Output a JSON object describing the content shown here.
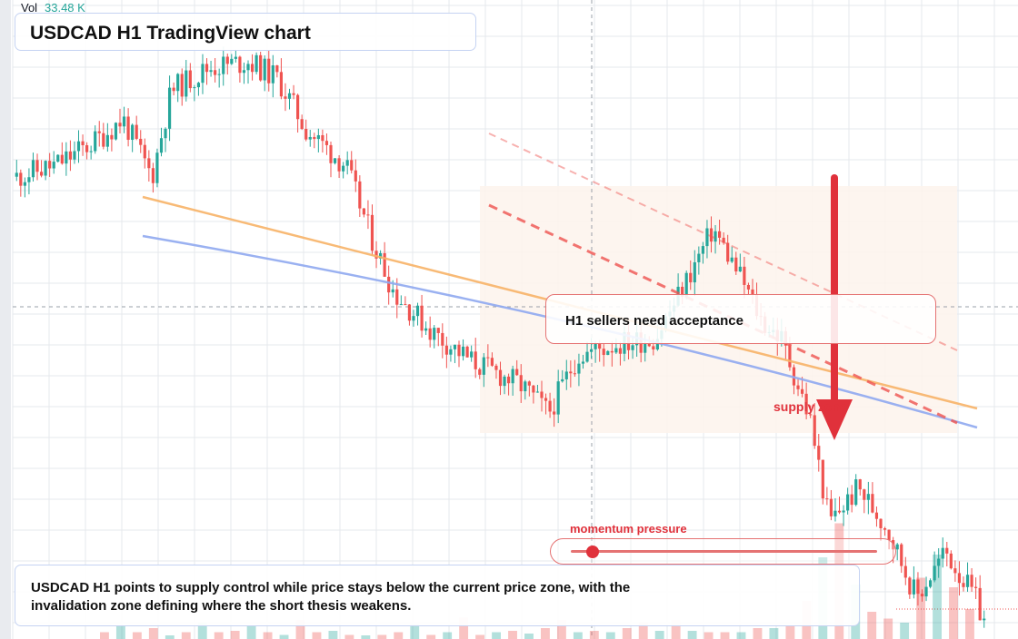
{
  "header": {
    "vol_label": "Vol",
    "vol_value": "33.48 K",
    "title": "USDCAD H1 TradingView chart"
  },
  "annotations": {
    "callout": "H1 sellers need acceptance",
    "supply_zone": "supply zone",
    "momentum_label": "momentum pressure",
    "momentum_level": 0.07,
    "summary": "USDCAD H1 points to supply control while price stays below the current price zone, with the invalidation zone defining where the short thesis weakens."
  },
  "colors": {
    "bull": "#26a69a",
    "bear": "#ef5350",
    "accent_red": "#e0313b",
    "orange_line": "#f7b267",
    "blue_line": "#8fa8f0",
    "zone_fill": "#fdf3ec",
    "grid": "#e6e8ec"
  },
  "chart_data": {
    "type": "candlestick",
    "symbol": "USDCAD",
    "timeframe": "H1",
    "volume_readout": "33.48 K",
    "title": "USDCAD H1 TradingView chart",
    "trend": [
      {
        "t": 0,
        "p": 0.78
      },
      {
        "t": 0.04,
        "p": 0.8
      },
      {
        "t": 0.08,
        "p": 0.84
      },
      {
        "t": 0.11,
        "p": 0.88
      },
      {
        "t": 0.14,
        "p": 0.78
      },
      {
        "t": 0.16,
        "p": 0.93
      },
      {
        "t": 0.2,
        "p": 0.97
      },
      {
        "t": 0.24,
        "p": 0.98
      },
      {
        "t": 0.27,
        "p": 0.95
      },
      {
        "t": 0.3,
        "p": 0.86
      },
      {
        "t": 0.34,
        "p": 0.8
      },
      {
        "t": 0.37,
        "p": 0.66
      },
      {
        "t": 0.39,
        "p": 0.58
      },
      {
        "t": 0.43,
        "p": 0.51
      },
      {
        "t": 0.47,
        "p": 0.46
      },
      {
        "t": 0.52,
        "p": 0.42
      },
      {
        "t": 0.55,
        "p": 0.37
      },
      {
        "t": 0.58,
        "p": 0.47
      },
      {
        "t": 0.62,
        "p": 0.49
      },
      {
        "t": 0.66,
        "p": 0.5
      },
      {
        "t": 0.68,
        "p": 0.56
      },
      {
        "t": 0.72,
        "p": 0.69
      },
      {
        "t": 0.75,
        "p": 0.6
      },
      {
        "t": 0.77,
        "p": 0.53
      },
      {
        "t": 0.79,
        "p": 0.5
      },
      {
        "t": 0.82,
        "p": 0.36
      },
      {
        "t": 0.84,
        "p": 0.18
      },
      {
        "t": 0.87,
        "p": 0.24
      },
      {
        "t": 0.9,
        "p": 0.17
      },
      {
        "t": 0.93,
        "p": 0.05
      },
      {
        "t": 0.96,
        "p": 0.13
      },
      {
        "t": 0.99,
        "p": 0.05
      },
      {
        "t": 1.0,
        "p": 0.01
      }
    ],
    "volume_profile": [
      0.05,
      0.1,
      0.05,
      0.08,
      0.02,
      0.05,
      0.12,
      0.05,
      0.06,
      0.1,
      0.05,
      0.03,
      0.14,
      0.05,
      0.06,
      0.03,
      0.02,
      0.03,
      0.05,
      0.11,
      0.03,
      0.05,
      0.16,
      0.03,
      0.05,
      0.06,
      0.04,
      0.08,
      0.14,
      0.05,
      0.06,
      0.05,
      0.08,
      0.12,
      0.06,
      0.14,
      0.06,
      0.05,
      0.05,
      0.05,
      0.08,
      0.08,
      0.1,
      0.28,
      0.6,
      0.85,
      0.4,
      0.2,
      0.15,
      0.12,
      0.45,
      0.62,
      0.38,
      0.22
    ]
  }
}
